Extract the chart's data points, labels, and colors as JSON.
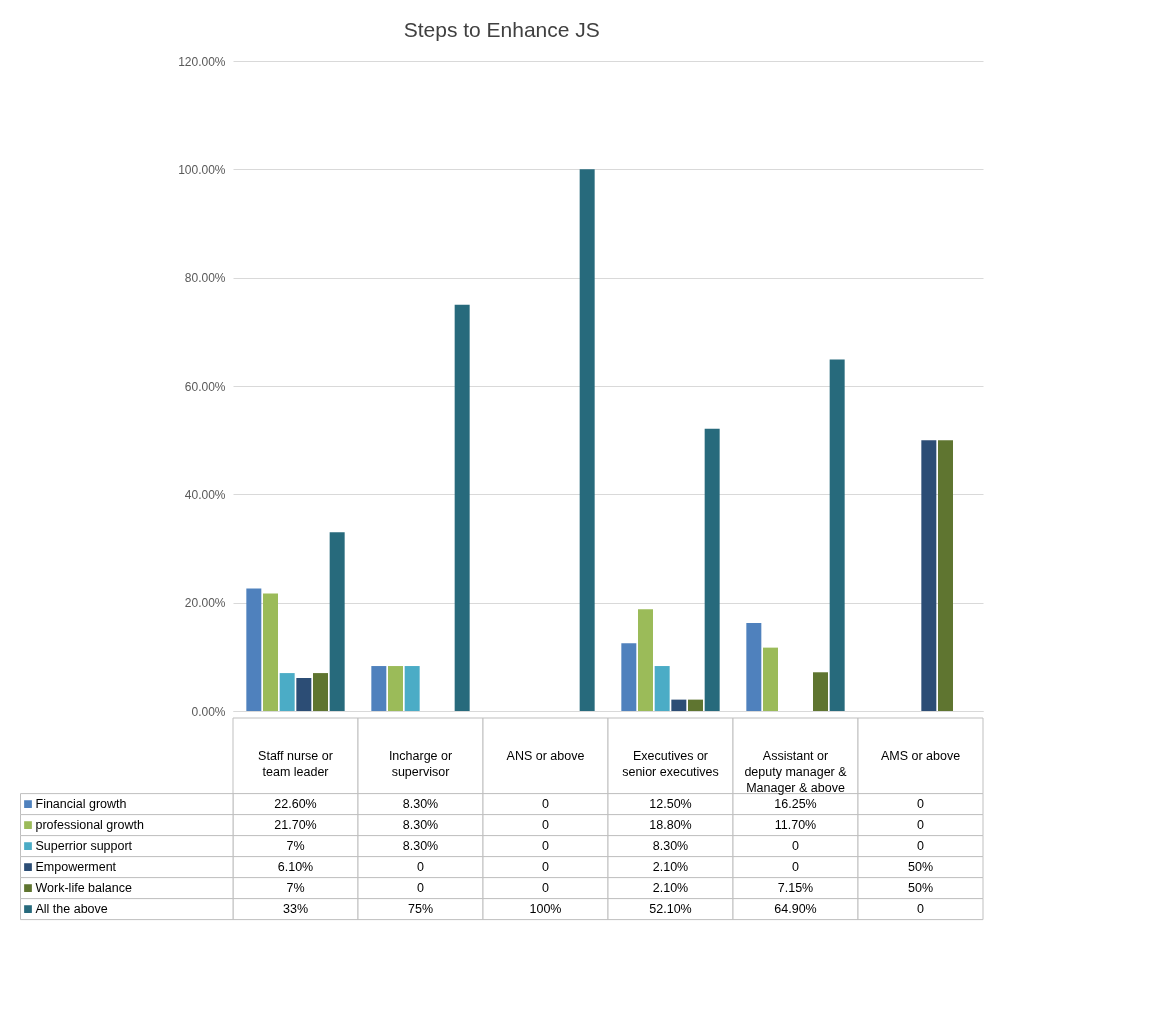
{
  "chart_data": {
    "type": "bar",
    "title": "Steps to Enhance JS",
    "categories": [
      "Staff nurse or team leader",
      "Incharge or supervisor",
      "ANS or above",
      "Executives or senior executives",
      "Assistant or deputy manager & Manager & above",
      "AMS or above"
    ],
    "series": [
      {
        "name": "Financial growth",
        "color": "#4f81bd",
        "values": [
          22.6,
          8.3,
          0,
          12.5,
          16.25,
          0
        ],
        "value_labels": [
          "22.60%",
          "8.30%",
          "0",
          "12.50%",
          "16.25%",
          "0"
        ]
      },
      {
        "name": "professional growth",
        "color": "#9bbb59",
        "values": [
          21.7,
          8.3,
          0,
          18.8,
          11.7,
          0
        ],
        "value_labels": [
          "21.70%",
          "8.30%",
          "0",
          "18.80%",
          "11.70%",
          "0"
        ]
      },
      {
        "name": "Superrior support",
        "color": "#4bacc6",
        "values": [
          7,
          8.3,
          0,
          8.3,
          0,
          0
        ],
        "value_labels": [
          "7%",
          "8.30%",
          "0",
          "8.30%",
          "0",
          "0"
        ]
      },
      {
        "name": "Empowerment",
        "color": "#2c4d75",
        "values": [
          6.1,
          0,
          0,
          2.1,
          0,
          50
        ],
        "value_labels": [
          "6.10%",
          "0",
          "0",
          "2.10%",
          "0",
          "50%"
        ]
      },
      {
        "name": "Work-life balance",
        "color": "#5f7530",
        "values": [
          7,
          0,
          0,
          2.1,
          7.15,
          50
        ],
        "value_labels": [
          "7%",
          "0",
          "0",
          "2.10%",
          "7.15%",
          "50%"
        ]
      },
      {
        "name": "All the above",
        "color": "#276a7c",
        "values": [
          33,
          75,
          100,
          52.1,
          64.9,
          0
        ],
        "value_labels": [
          "33%",
          "75%",
          "100%",
          "52.10%",
          "64.90%",
          "0"
        ]
      }
    ],
    "ylim": [
      0,
      120
    ],
    "yticks": [
      {
        "value": 0,
        "label": "0.00%"
      },
      {
        "value": 20,
        "label": "20.00%"
      },
      {
        "value": 40,
        "label": "40.00%"
      },
      {
        "value": 60,
        "label": "60.00%"
      },
      {
        "value": 80,
        "label": "80.00%"
      },
      {
        "value": 100,
        "label": "100.00%"
      },
      {
        "value": 120,
        "label": "120.00%"
      }
    ],
    "grid": "y",
    "legend": "bottom"
  }
}
